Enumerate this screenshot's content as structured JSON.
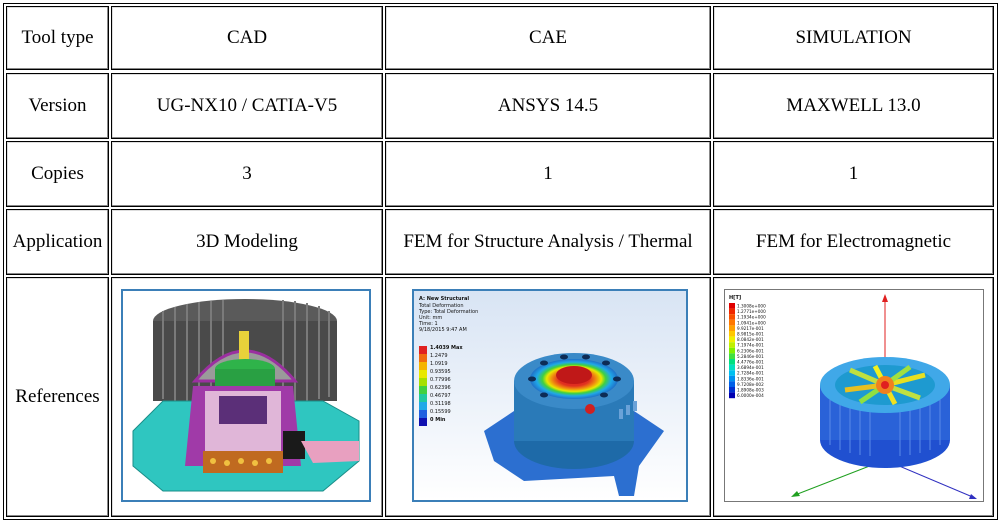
{
  "table": {
    "row_labels": [
      "Tool type",
      "Version",
      "Copies",
      "Application",
      "References"
    ],
    "columns": [
      {
        "tool_type": "CAD",
        "version": "UG-NX10 / CATIA-V5",
        "copies": "3",
        "application": "3D Modeling",
        "reference_image": "cad-motor-cutaway-render"
      },
      {
        "tool_type": "CAE",
        "version": "ANSYS 14.5",
        "copies": "1",
        "application": "FEM for Structure Analysis / Thermal",
        "reference_image": "ansys-total-deformation-plot"
      },
      {
        "tool_type": "SIMULATION",
        "version": "MAXWELL 13.0",
        "copies": "1",
        "application": "FEM for Electromagnetic",
        "reference_image": "maxwell-electromagnetic-field-plot"
      }
    ]
  },
  "ansys_plot": {
    "title": "A: New Structural",
    "lines": [
      "Total Deformation",
      "Type: Total Deformation",
      "Unit: mm",
      "Time: 1",
      "9/18/2015 9:47 AM"
    ],
    "legend": [
      "1.4039 Max",
      "1.2479",
      "1.0919",
      "0.93595",
      "0.77996",
      "0.62396",
      "0.46797",
      "0.31198",
      "0.15599",
      "0 Min"
    ],
    "legend_colors": [
      "#e02020",
      "#f06a10",
      "#f5b400",
      "#e8e800",
      "#a6e000",
      "#40d040",
      "#20c8a0",
      "#20a8e8",
      "#2060e0",
      "#1010b0"
    ]
  },
  "maxwell_plot": {
    "title": "H[T]",
    "legend": [
      "1.3008e+000",
      "1.2771e+000",
      "1.1934e+000",
      "1.0941e+000",
      "9.9217e-001",
      "8.9815e-001",
      "8.0842e-001",
      "7.1974e-001",
      "6.2306e-001",
      "5.2846e-001",
      "4.4776e-001",
      "3.6894e-001",
      "2.7284e-001",
      "1.8336e-001",
      "9.7208e-002",
      "1.8908e-003",
      "6.0000e-004"
    ],
    "legend_colors": [
      "#e00000",
      "#f02800",
      "#f85000",
      "#ff7800",
      "#ffa000",
      "#ffc800",
      "#f0f000",
      "#c0f000",
      "#80f000",
      "#40e040",
      "#00e080",
      "#00e0c0",
      "#00c0f0",
      "#0090f0",
      "#0060e8",
      "#0030d0",
      "#0000b0"
    ]
  }
}
